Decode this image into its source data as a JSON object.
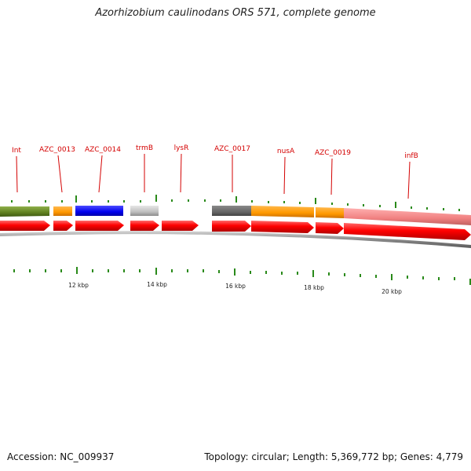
{
  "title": "Azorhizobium caulinodans ORS 571, complete genome",
  "accession": "Accession: NC_009937",
  "topology": "Topology: circular",
  "length": "Length: 5,369,772 bp",
  "genes": "Genes: 4,779",
  "colors": {
    "label": "#d40000",
    "tick": "#2a8a1a",
    "forward_arrow": "#ff0000",
    "backbone": "#9a9a9a"
  },
  "gene_labels": [
    "Int",
    "AZC_0013",
    "AZC_0014",
    "trmB",
    "lysR",
    "AZC_0017",
    "nusA",
    "AZC_0019",
    "infB"
  ],
  "scale_labels": [
    "12 kbp",
    "14 kbp",
    "16 kbp",
    "18 kbp",
    "20 kbp"
  ],
  "feature_colors": [
    "#6b8e23",
    "#ff9900",
    "#0000ee",
    "#c0c0c0",
    "#666666",
    "#ff8c00",
    "#ff9900",
    "#f08080"
  ]
}
